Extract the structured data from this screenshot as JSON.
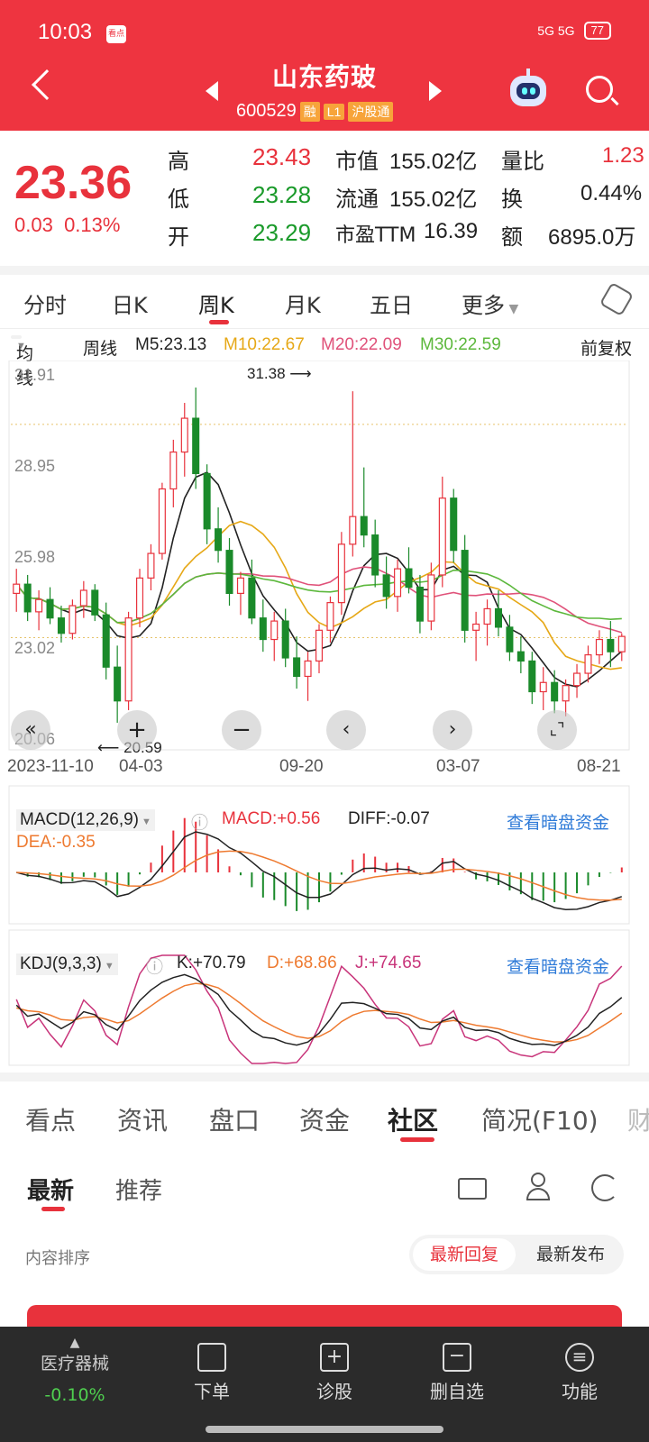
{
  "status_bar": {
    "time": "10:03",
    "signal": "5G  5G",
    "battery": "77"
  },
  "header": {
    "title": "山东药玻",
    "code": "600529",
    "tags": [
      "融",
      "L1",
      "沪股通"
    ]
  },
  "quote": {
    "price": "23.36",
    "change": "0.03",
    "change_pct": "0.13%",
    "high_label": "高",
    "high": "23.43",
    "low_label": "低",
    "low": "23.28",
    "open_label": "开",
    "open": "23.29",
    "mcap_label": "市值",
    "mcap": "155.02亿",
    "float_label": "流通",
    "float": "155.02亿",
    "pe_label": "市盈TTM",
    "pe": "16.39",
    "vr_label": "量比",
    "vr": "1.23",
    "turn_label": "换",
    "turn": "0.44%",
    "amt_label": "额",
    "amt": "6895.0万"
  },
  "ktabs": [
    "分时",
    "日K",
    "周K",
    "月K",
    "五日",
    "更多"
  ],
  "ma_bar": {
    "mode": "均线",
    "period": "周线",
    "m5": "M5:23.13",
    "m10": "M10:22.67",
    "m20": "M20:22.09",
    "m30": "M30:22.59",
    "adjust": "前复权"
  },
  "colors": {
    "m5": "#222222",
    "m10": "#e6a817",
    "m20": "#e0527a",
    "m30": "#5cb83c",
    "up": "#e8323c",
    "down": "#1a8a2a"
  },
  "chart_data": {
    "type": "candlestick",
    "y_ticks": [
      "31.91",
      "28.95",
      "25.98",
      "23.02",
      "20.06"
    ],
    "ylim": [
      20.06,
      31.91
    ],
    "x_ticks": [
      "2023-11-10",
      "04-03",
      "09-20",
      "03-07",
      "08-21"
    ],
    "max_label": "31.38",
    "min_label": "20.59",
    "candles": [
      [
        24.8,
        25.6,
        24.2,
        25.1
      ],
      [
        25.1,
        25.4,
        23.9,
        24.2
      ],
      [
        24.2,
        24.9,
        23.6,
        24.6
      ],
      [
        24.6,
        25.0,
        23.8,
        24.0
      ],
      [
        24.0,
        24.4,
        23.2,
        23.5
      ],
      [
        23.5,
        24.6,
        23.3,
        24.4
      ],
      [
        24.4,
        25.2,
        24.0,
        24.9
      ],
      [
        24.9,
        25.1,
        23.9,
        24.1
      ],
      [
        24.1,
        24.5,
        22.0,
        22.4
      ],
      [
        22.4,
        23.1,
        20.59,
        21.3
      ],
      [
        21.3,
        24.2,
        21.0,
        24.0
      ],
      [
        24.0,
        25.6,
        23.7,
        25.3
      ],
      [
        25.3,
        26.4,
        24.9,
        26.1
      ],
      [
        26.1,
        28.4,
        25.9,
        28.2
      ],
      [
        28.2,
        29.8,
        27.6,
        29.4
      ],
      [
        29.4,
        31.0,
        28.6,
        30.5
      ],
      [
        30.5,
        31.5,
        28.2,
        28.7
      ],
      [
        28.7,
        29.0,
        26.4,
        26.9
      ],
      [
        26.9,
        27.6,
        25.8,
        26.2
      ],
      [
        26.2,
        26.6,
        24.4,
        24.8
      ],
      [
        24.8,
        25.5,
        24.1,
        25.3
      ],
      [
        25.3,
        25.9,
        23.8,
        24.0
      ],
      [
        24.0,
        24.6,
        22.9,
        23.3
      ],
      [
        23.3,
        24.2,
        22.6,
        23.9
      ],
      [
        23.9,
        24.3,
        22.4,
        22.7
      ],
      [
        22.7,
        23.4,
        21.7,
        22.1
      ],
      [
        22.1,
        22.9,
        21.3,
        22.6
      ],
      [
        22.6,
        23.8,
        22.2,
        23.6
      ],
      [
        23.6,
        24.7,
        23.2,
        24.5
      ],
      [
        24.5,
        26.8,
        24.1,
        26.4
      ],
      [
        26.4,
        31.38,
        26.0,
        27.3
      ],
      [
        27.3,
        28.9,
        26.3,
        26.7
      ],
      [
        26.7,
        27.2,
        25.0,
        25.4
      ],
      [
        25.4,
        26.0,
        24.3,
        24.7
      ],
      [
        24.7,
        25.9,
        24.2,
        25.6
      ],
      [
        25.6,
        26.3,
        24.8,
        25.0
      ],
      [
        25.0,
        25.4,
        23.5,
        23.9
      ],
      [
        23.9,
        25.8,
        23.6,
        25.4
      ],
      [
        25.4,
        28.6,
        25.0,
        27.9
      ],
      [
        27.9,
        28.2,
        25.8,
        26.2
      ],
      [
        26.2,
        26.7,
        23.2,
        23.6
      ],
      [
        23.6,
        24.2,
        22.6,
        23.8
      ],
      [
        23.8,
        24.6,
        23.1,
        24.3
      ],
      [
        24.3,
        24.9,
        23.4,
        23.7
      ],
      [
        23.7,
        24.1,
        22.6,
        22.9
      ],
      [
        22.9,
        23.4,
        22.2,
        22.6
      ],
      [
        22.6,
        22.9,
        21.2,
        21.6
      ],
      [
        21.6,
        22.4,
        21.0,
        21.9
      ],
      [
        21.9,
        22.3,
        20.9,
        21.3
      ],
      [
        21.3,
        22.0,
        20.8,
        21.8
      ],
      [
        21.8,
        22.5,
        21.4,
        22.2
      ],
      [
        22.2,
        23.1,
        21.9,
        22.8
      ],
      [
        22.8,
        23.6,
        22.5,
        23.3
      ],
      [
        23.3,
        23.9,
        22.4,
        22.9
      ],
      [
        22.9,
        23.5,
        22.6,
        23.4
      ]
    ],
    "macd_panel": {
      "title": "MACD(12,26,9)",
      "macd": "MACD:+0.56",
      "diff": "DIFF:-0.07",
      "dea": "DEA:-0.35",
      "link": "查看暗盘资金"
    },
    "kdj_panel": {
      "title": "KDJ(9,3,3)",
      "k": "K:+70.79",
      "d": "D:+68.86",
      "j": "J:+74.65",
      "link": "查看暗盘资金"
    }
  },
  "btabs": [
    "看点",
    "资讯",
    "盘口",
    "资金",
    "社区",
    "简况(F10)",
    "财"
  ],
  "community": {
    "tab_latest": "最新",
    "tab_recommend": "推荐",
    "sort_label": "内容排序",
    "reply": "最新回复",
    "publish": "最新发布"
  },
  "bottom_nav": {
    "sector": "医疗器械",
    "sector_change": "-0.10%",
    "order": "下单",
    "diagnose": "诊股",
    "remove": "删自选",
    "func": "功能"
  }
}
